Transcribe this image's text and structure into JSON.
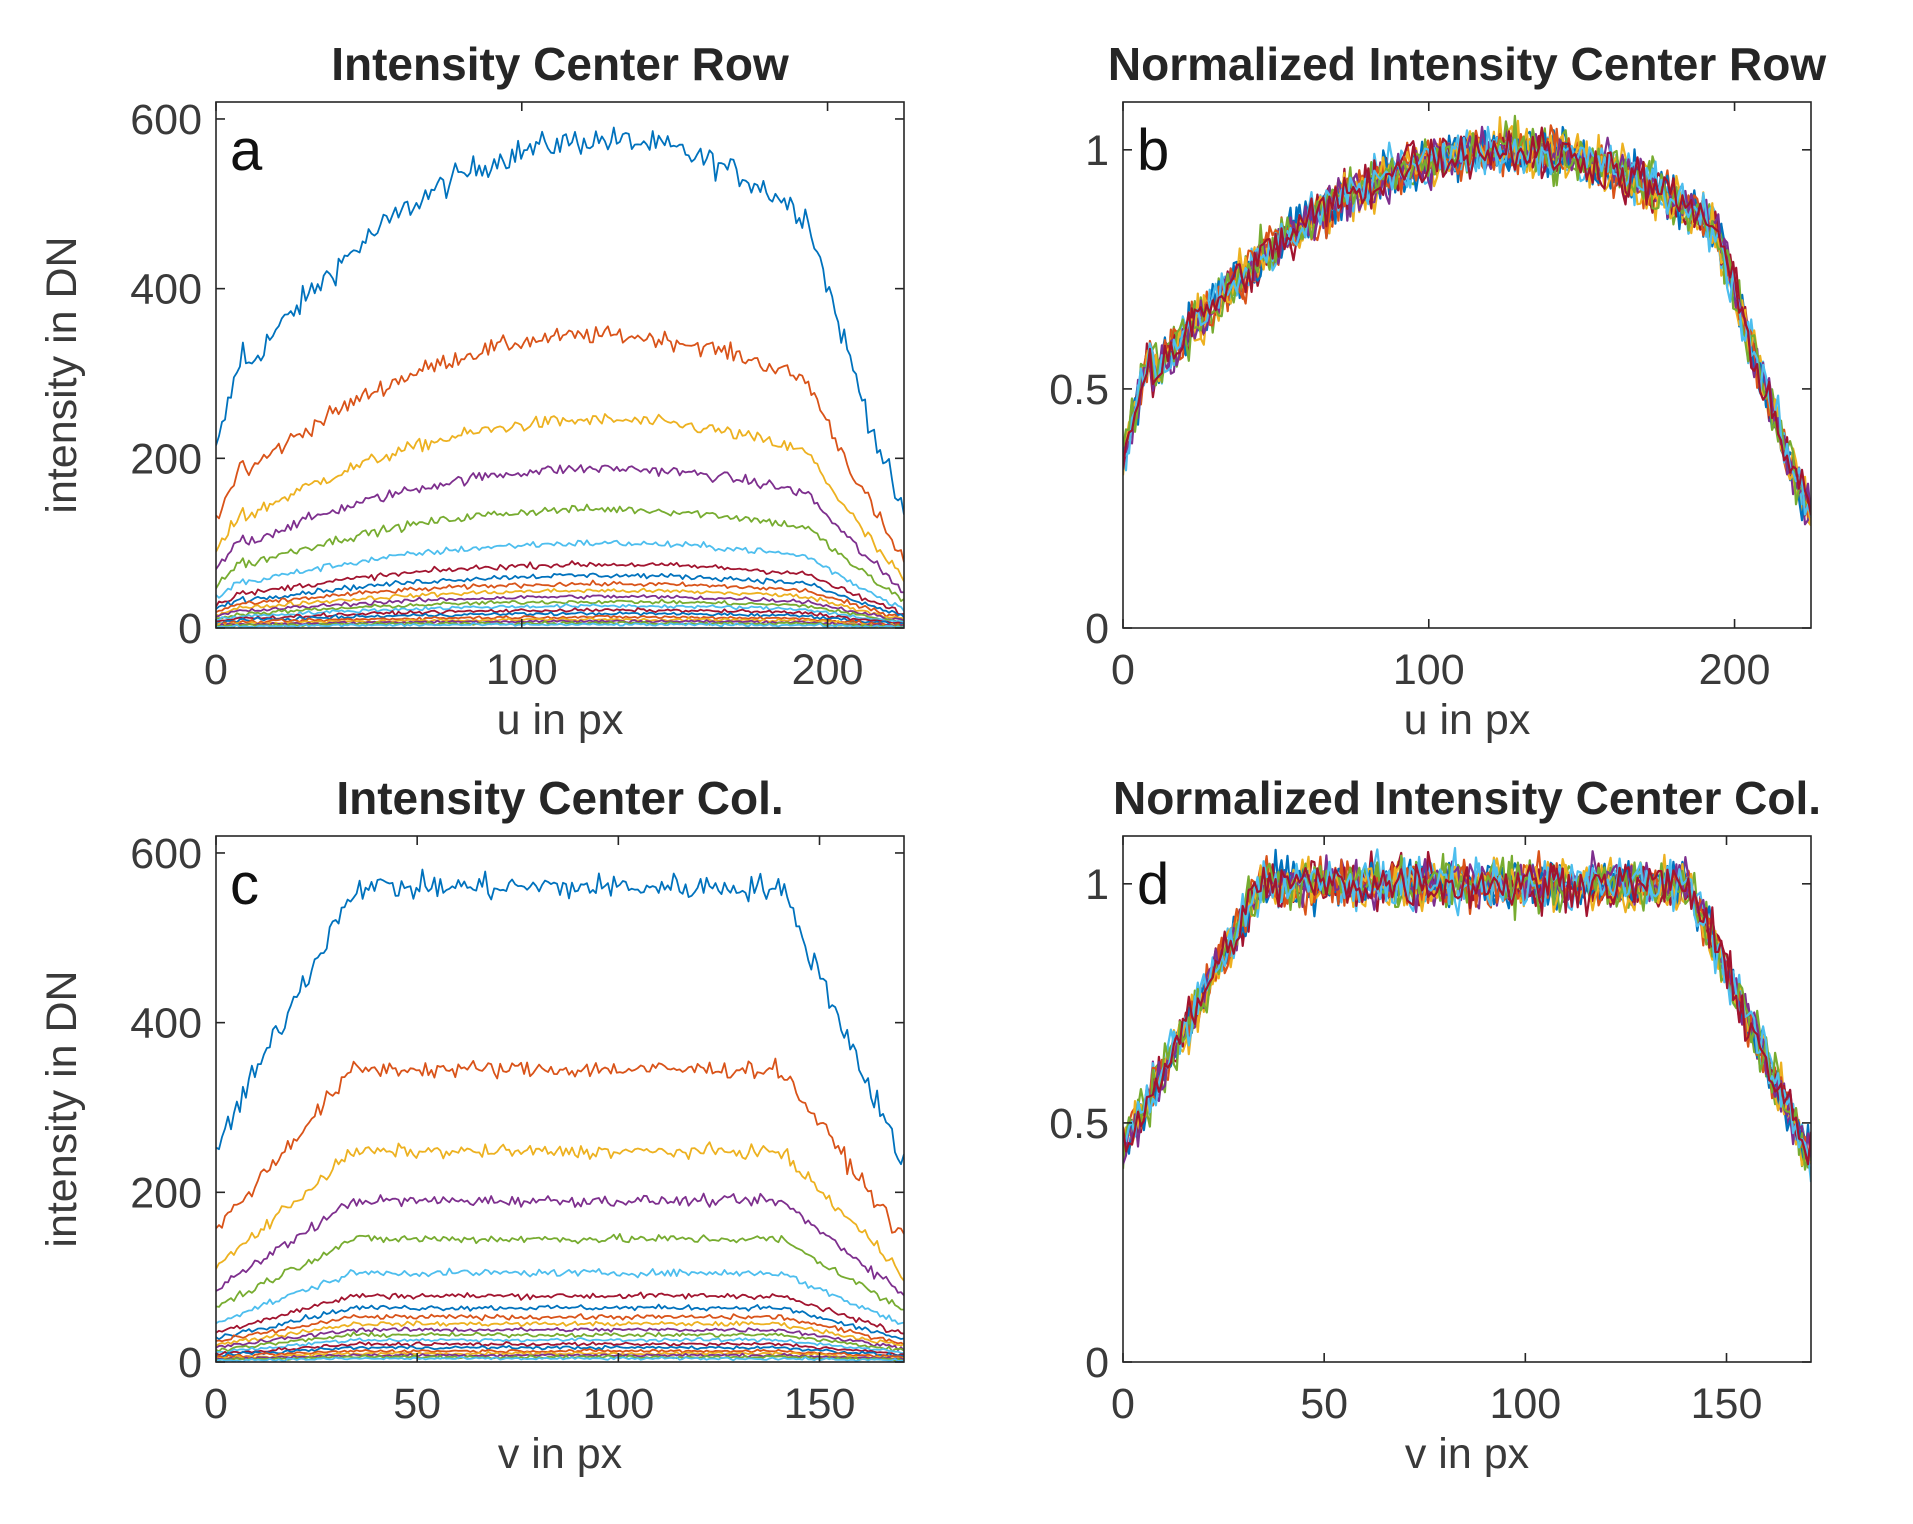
{
  "chart_data": [
    {
      "type": "line",
      "letter": "a",
      "title": "Intensity Center Row",
      "xlabel": "u in px",
      "ylabel": "intensity in DN",
      "xlim": [
        0,
        225
      ],
      "ylim": [
        0,
        620
      ],
      "xticks": [
        0,
        100,
        200
      ],
      "yticks": [
        0,
        200,
        400,
        600
      ],
      "ytick_labels": [
        "0",
        "200",
        "400",
        "600"
      ],
      "normalized": false,
      "series": [
        {
          "name": "s1",
          "color": "#0072BD",
          "peak": 575
        },
        {
          "name": "s2",
          "color": "#D95319",
          "peak": 345
        },
        {
          "name": "s3",
          "color": "#EDB120",
          "peak": 245
        },
        {
          "name": "s4",
          "color": "#7E2F8E",
          "peak": 188
        },
        {
          "name": "s5",
          "color": "#77AC30",
          "peak": 140
        },
        {
          "name": "s6",
          "color": "#4DBEEE",
          "peak": 100
        },
        {
          "name": "s7",
          "color": "#A2142F",
          "peak": 75
        },
        {
          "name": "s8",
          "color": "#0072BD",
          "peak": 62
        },
        {
          "name": "s9",
          "color": "#D95319",
          "peak": 52
        },
        {
          "name": "s10",
          "color": "#EDB120",
          "peak": 44
        },
        {
          "name": "s11",
          "color": "#7E2F8E",
          "peak": 37
        },
        {
          "name": "s12",
          "color": "#77AC30",
          "peak": 31
        },
        {
          "name": "s13",
          "color": "#4DBEEE",
          "peak": 26
        },
        {
          "name": "s14",
          "color": "#A2142F",
          "peak": 21
        },
        {
          "name": "s15",
          "color": "#0072BD",
          "peak": 17
        },
        {
          "name": "s16",
          "color": "#D95319",
          "peak": 13
        },
        {
          "name": "s17",
          "color": "#EDB120",
          "peak": 10
        },
        {
          "name": "s18",
          "color": "#7E2F8E",
          "peak": 8
        },
        {
          "name": "s19",
          "color": "#77AC30",
          "peak": 6
        },
        {
          "name": "s20",
          "color": "#4DBEEE",
          "peak": 4
        }
      ]
    },
    {
      "type": "line",
      "letter": "b",
      "title": "Normalized Intensity Center Row",
      "xlabel": "u in px",
      "ylabel": "",
      "xlim": [
        0,
        225
      ],
      "ylim": [
        0,
        1.1
      ],
      "xticks": [
        0,
        100,
        200
      ],
      "yticks": [
        0,
        0.5,
        1
      ],
      "ytick_labels": [
        "0",
        "0.5",
        "1"
      ],
      "normalized": true,
      "series": [
        {
          "name": "s1",
          "color": "#0072BD",
          "peak": 1
        },
        {
          "name": "s2",
          "color": "#D95319",
          "peak": 1
        },
        {
          "name": "s3",
          "color": "#EDB120",
          "peak": 1
        },
        {
          "name": "s4",
          "color": "#7E2F8E",
          "peak": 1
        },
        {
          "name": "s5",
          "color": "#77AC30",
          "peak": 1
        },
        {
          "name": "s6",
          "color": "#4DBEEE",
          "peak": 1
        },
        {
          "name": "s7",
          "color": "#A2142F",
          "peak": 1
        },
        {
          "name": "s8",
          "color": "#0072BD",
          "peak": 1
        },
        {
          "name": "s9",
          "color": "#D95319",
          "peak": 1
        },
        {
          "name": "s10",
          "color": "#EDB120",
          "peak": 1
        },
        {
          "name": "s11",
          "color": "#7E2F8E",
          "peak": 1
        },
        {
          "name": "s12",
          "color": "#77AC30",
          "peak": 1
        },
        {
          "name": "s13",
          "color": "#4DBEEE",
          "peak": 1
        },
        {
          "name": "s14",
          "color": "#A2142F",
          "peak": 1
        }
      ]
    },
    {
      "type": "line",
      "letter": "c",
      "title": "Intensity Center Col.",
      "xlabel": "v in px",
      "ylabel": "intensity in DN",
      "xlim": [
        0,
        171
      ],
      "ylim": [
        0,
        620
      ],
      "xticks": [
        0,
        50,
        100,
        150
      ],
      "yticks": [
        0,
        200,
        400,
        600
      ],
      "ytick_labels": [
        "0",
        "200",
        "400",
        "600"
      ],
      "normalized": false,
      "series": [
        {
          "name": "s1",
          "color": "#0072BD",
          "peak": 560
        },
        {
          "name": "s2",
          "color": "#D95319",
          "peak": 345
        },
        {
          "name": "s3",
          "color": "#EDB120",
          "peak": 248
        },
        {
          "name": "s4",
          "color": "#7E2F8E",
          "peak": 190
        },
        {
          "name": "s5",
          "color": "#77AC30",
          "peak": 145
        },
        {
          "name": "s6",
          "color": "#4DBEEE",
          "peak": 105
        },
        {
          "name": "s7",
          "color": "#A2142F",
          "peak": 78
        },
        {
          "name": "s8",
          "color": "#0072BD",
          "peak": 64
        },
        {
          "name": "s9",
          "color": "#D95319",
          "peak": 53
        },
        {
          "name": "s10",
          "color": "#EDB120",
          "peak": 45
        },
        {
          "name": "s11",
          "color": "#7E2F8E",
          "peak": 38
        },
        {
          "name": "s12",
          "color": "#77AC30",
          "peak": 32
        },
        {
          "name": "s13",
          "color": "#4DBEEE",
          "peak": 26
        },
        {
          "name": "s14",
          "color": "#A2142F",
          "peak": 21
        },
        {
          "name": "s15",
          "color": "#0072BD",
          "peak": 17
        },
        {
          "name": "s16",
          "color": "#D95319",
          "peak": 13
        },
        {
          "name": "s17",
          "color": "#EDB120",
          "peak": 10
        },
        {
          "name": "s18",
          "color": "#7E2F8E",
          "peak": 8
        },
        {
          "name": "s19",
          "color": "#77AC30",
          "peak": 6
        },
        {
          "name": "s20",
          "color": "#4DBEEE",
          "peak": 4
        }
      ]
    },
    {
      "type": "line",
      "letter": "d",
      "title": "Normalized Intensity Center Col.",
      "xlabel": "v in px",
      "ylabel": "",
      "xlim": [
        0,
        171
      ],
      "ylim": [
        0,
        1.1
      ],
      "xticks": [
        0,
        50,
        100,
        150
      ],
      "yticks": [
        0,
        0.5,
        1
      ],
      "ytick_labels": [
        "0",
        "0.5",
        "1"
      ],
      "normalized": true,
      "series": [
        {
          "name": "s1",
          "color": "#0072BD",
          "peak": 1
        },
        {
          "name": "s2",
          "color": "#D95319",
          "peak": 1
        },
        {
          "name": "s3",
          "color": "#EDB120",
          "peak": 1
        },
        {
          "name": "s4",
          "color": "#7E2F8E",
          "peak": 1
        },
        {
          "name": "s5",
          "color": "#77AC30",
          "peak": 1
        },
        {
          "name": "s6",
          "color": "#4DBEEE",
          "peak": 1
        },
        {
          "name": "s7",
          "color": "#A2142F",
          "peak": 1
        },
        {
          "name": "s8",
          "color": "#0072BD",
          "peak": 1
        },
        {
          "name": "s9",
          "color": "#D95319",
          "peak": 1
        },
        {
          "name": "s10",
          "color": "#EDB120",
          "peak": 1
        },
        {
          "name": "s11",
          "color": "#7E2F8E",
          "peak": 1
        },
        {
          "name": "s12",
          "color": "#77AC30",
          "peak": 1
        },
        {
          "name": "s13",
          "color": "#4DBEEE",
          "peak": 1
        },
        {
          "name": "s14",
          "color": "#A2142F",
          "peak": 1
        }
      ]
    }
  ]
}
